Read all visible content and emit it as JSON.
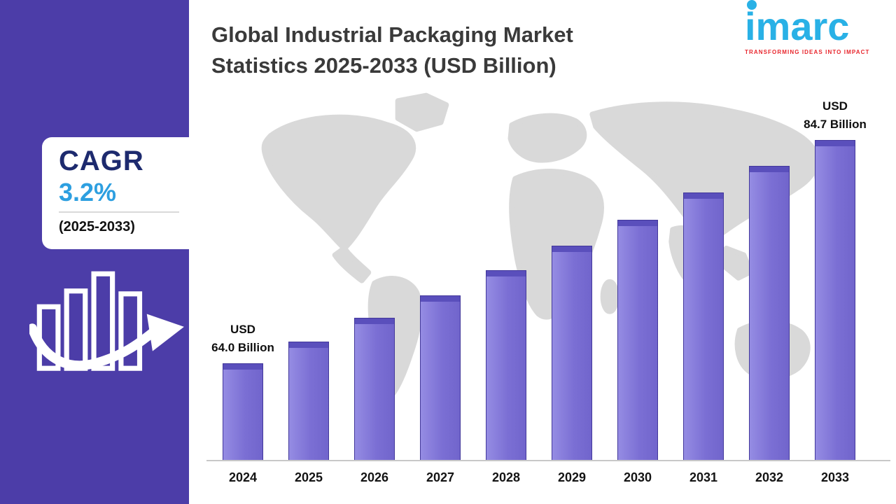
{
  "sidebar": {
    "cagr_label": "CAGR",
    "cagr_value": "3.2%",
    "cagr_period": "(2025-2033)",
    "accent_color": "#4c3da8"
  },
  "header": {
    "title_line1": "Global Industrial Packaging Market",
    "title_line2": "Statistics 2025-2033 (USD Billion)"
  },
  "logo": {
    "text": "imarc",
    "tagline": "TRANSFORMING IDEAS INTO IMPACT",
    "brand_color": "#29b1e6",
    "tagline_color": "#e8262d"
  },
  "chart_data": {
    "type": "bar",
    "title": "Global Industrial Packaging Market Statistics 2025-2033 (USD Billion)",
    "categories": [
      "2024",
      "2025",
      "2026",
      "2027",
      "2028",
      "2029",
      "2030",
      "2031",
      "2032",
      "2033"
    ],
    "values": [
      64.0,
      66.0,
      68.2,
      70.3,
      72.6,
      74.9,
      77.3,
      79.8,
      82.3,
      84.7
    ],
    "xlabel": "",
    "ylabel": "",
    "ylim": [
      55,
      88
    ],
    "grid": false,
    "legend": false,
    "bar_color": "#7b6fd4",
    "annotations": [
      {
        "target": "first",
        "lines": [
          "USD",
          "64.0 Billion"
        ]
      },
      {
        "target": "last",
        "lines": [
          "USD",
          "84.7 Billion"
        ]
      }
    ]
  }
}
